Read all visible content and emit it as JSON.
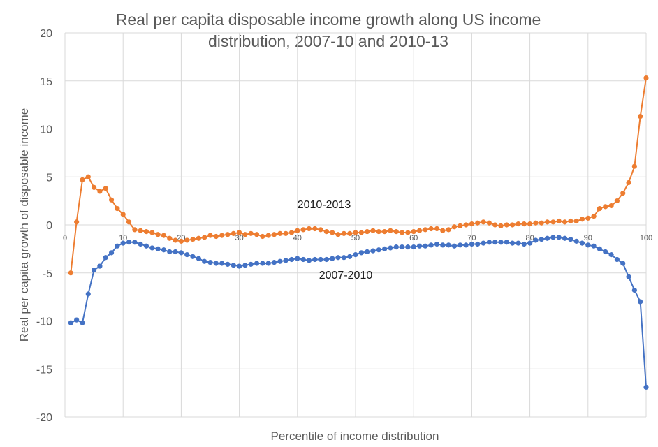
{
  "chart_data": {
    "type": "line",
    "title_lines": [
      "Real per capita disposable income growth along US income",
      "distribution, 2007-10 and 2010-13"
    ],
    "xlabel": "Percentile of income distribution",
    "ylabel": "Real per capita growth of disposable income",
    "xlim": [
      0,
      100
    ],
    "ylim": [
      -20,
      20
    ],
    "xticks": [
      0,
      10,
      20,
      30,
      40,
      50,
      60,
      70,
      80,
      90,
      100
    ],
    "yticks": [
      20,
      15,
      10,
      5,
      0,
      -5,
      -10,
      -15,
      -20
    ],
    "grid": true,
    "series": [
      {
        "name": "2010-2013",
        "color": "#ED7D31",
        "x": [
          1,
          2,
          3,
          4,
          5,
          6,
          7,
          8,
          9,
          10,
          11,
          12,
          13,
          14,
          15,
          16,
          17,
          18,
          19,
          20,
          21,
          22,
          23,
          24,
          25,
          26,
          27,
          28,
          29,
          30,
          31,
          32,
          33,
          34,
          35,
          36,
          37,
          38,
          39,
          40,
          41,
          42,
          43,
          44,
          45,
          46,
          47,
          48,
          49,
          50,
          51,
          52,
          53,
          54,
          55,
          56,
          57,
          58,
          59,
          60,
          61,
          62,
          63,
          64,
          65,
          66,
          67,
          68,
          69,
          70,
          71,
          72,
          73,
          74,
          75,
          76,
          77,
          78,
          79,
          80,
          81,
          82,
          83,
          84,
          85,
          86,
          87,
          88,
          89,
          90,
          91,
          92,
          93,
          94,
          95,
          96,
          97,
          98,
          99,
          100
        ],
        "values": [
          -5.0,
          0.3,
          4.7,
          5.0,
          3.9,
          3.5,
          3.8,
          2.6,
          1.7,
          1.1,
          0.3,
          -0.5,
          -0.6,
          -0.7,
          -0.8,
          -1.0,
          -1.1,
          -1.4,
          -1.6,
          -1.7,
          -1.6,
          -1.5,
          -1.4,
          -1.3,
          -1.1,
          -1.2,
          -1.1,
          -1.0,
          -0.9,
          -0.8,
          -1.0,
          -0.9,
          -1.0,
          -1.2,
          -1.1,
          -1.0,
          -0.9,
          -0.9,
          -0.8,
          -0.6,
          -0.5,
          -0.4,
          -0.4,
          -0.5,
          -0.7,
          -0.8,
          -1.0,
          -0.9,
          -0.9,
          -0.8,
          -0.8,
          -0.7,
          -0.6,
          -0.7,
          -0.7,
          -0.6,
          -0.7,
          -0.8,
          -0.8,
          -0.7,
          -0.6,
          -0.5,
          -0.4,
          -0.4,
          -0.6,
          -0.5,
          -0.2,
          -0.1,
          0.0,
          0.1,
          0.2,
          0.3,
          0.2,
          0.0,
          -0.1,
          0.0,
          0.0,
          0.1,
          0.1,
          0.1,
          0.2,
          0.2,
          0.3,
          0.3,
          0.4,
          0.3,
          0.4,
          0.4,
          0.6,
          0.7,
          0.9,
          1.7,
          1.9,
          2.0,
          2.5,
          3.3,
          4.4,
          6.1,
          11.3,
          15.3
        ]
      },
      {
        "name": "2007-2010",
        "color": "#4472C4",
        "x": [
          1,
          2,
          3,
          4,
          5,
          6,
          7,
          8,
          9,
          10,
          11,
          12,
          13,
          14,
          15,
          16,
          17,
          18,
          19,
          20,
          21,
          22,
          23,
          24,
          25,
          26,
          27,
          28,
          29,
          30,
          31,
          32,
          33,
          34,
          35,
          36,
          37,
          38,
          39,
          40,
          41,
          42,
          43,
          44,
          45,
          46,
          47,
          48,
          49,
          50,
          51,
          52,
          53,
          54,
          55,
          56,
          57,
          58,
          59,
          60,
          61,
          62,
          63,
          64,
          65,
          66,
          67,
          68,
          69,
          70,
          71,
          72,
          73,
          74,
          75,
          76,
          77,
          78,
          79,
          80,
          81,
          82,
          83,
          84,
          85,
          86,
          87,
          88,
          89,
          90,
          91,
          92,
          93,
          94,
          95,
          96,
          97,
          98,
          99,
          100
        ],
        "values": [
          -10.2,
          -9.9,
          -10.2,
          -7.2,
          -4.7,
          -4.3,
          -3.4,
          -2.9,
          -2.2,
          -1.9,
          -1.8,
          -1.8,
          -2.0,
          -2.2,
          -2.4,
          -2.5,
          -2.6,
          -2.8,
          -2.8,
          -2.9,
          -3.1,
          -3.3,
          -3.5,
          -3.8,
          -3.9,
          -4.0,
          -4.0,
          -4.1,
          -4.2,
          -4.3,
          -4.2,
          -4.1,
          -4.0,
          -4.0,
          -4.0,
          -3.9,
          -3.8,
          -3.7,
          -3.6,
          -3.5,
          -3.6,
          -3.7,
          -3.6,
          -3.6,
          -3.6,
          -3.5,
          -3.4,
          -3.4,
          -3.3,
          -3.1,
          -2.9,
          -2.8,
          -2.7,
          -2.6,
          -2.5,
          -2.4,
          -2.3,
          -2.3,
          -2.3,
          -2.3,
          -2.2,
          -2.2,
          -2.1,
          -2.0,
          -2.1,
          -2.1,
          -2.2,
          -2.1,
          -2.1,
          -2.0,
          -2.0,
          -1.9,
          -1.8,
          -1.8,
          -1.8,
          -1.8,
          -1.9,
          -1.9,
          -2.0,
          -1.9,
          -1.6,
          -1.5,
          -1.4,
          -1.3,
          -1.3,
          -1.4,
          -1.5,
          -1.7,
          -1.9,
          -2.1,
          -2.2,
          -2.5,
          -2.8,
          -3.1,
          -3.6,
          -4.0,
          -5.4,
          -6.8,
          -8.0,
          -16.9
        ]
      }
    ],
    "annotations": [
      {
        "text": "2010-2013",
        "series": 0
      },
      {
        "text": "2007-2010",
        "series": 1
      }
    ]
  }
}
